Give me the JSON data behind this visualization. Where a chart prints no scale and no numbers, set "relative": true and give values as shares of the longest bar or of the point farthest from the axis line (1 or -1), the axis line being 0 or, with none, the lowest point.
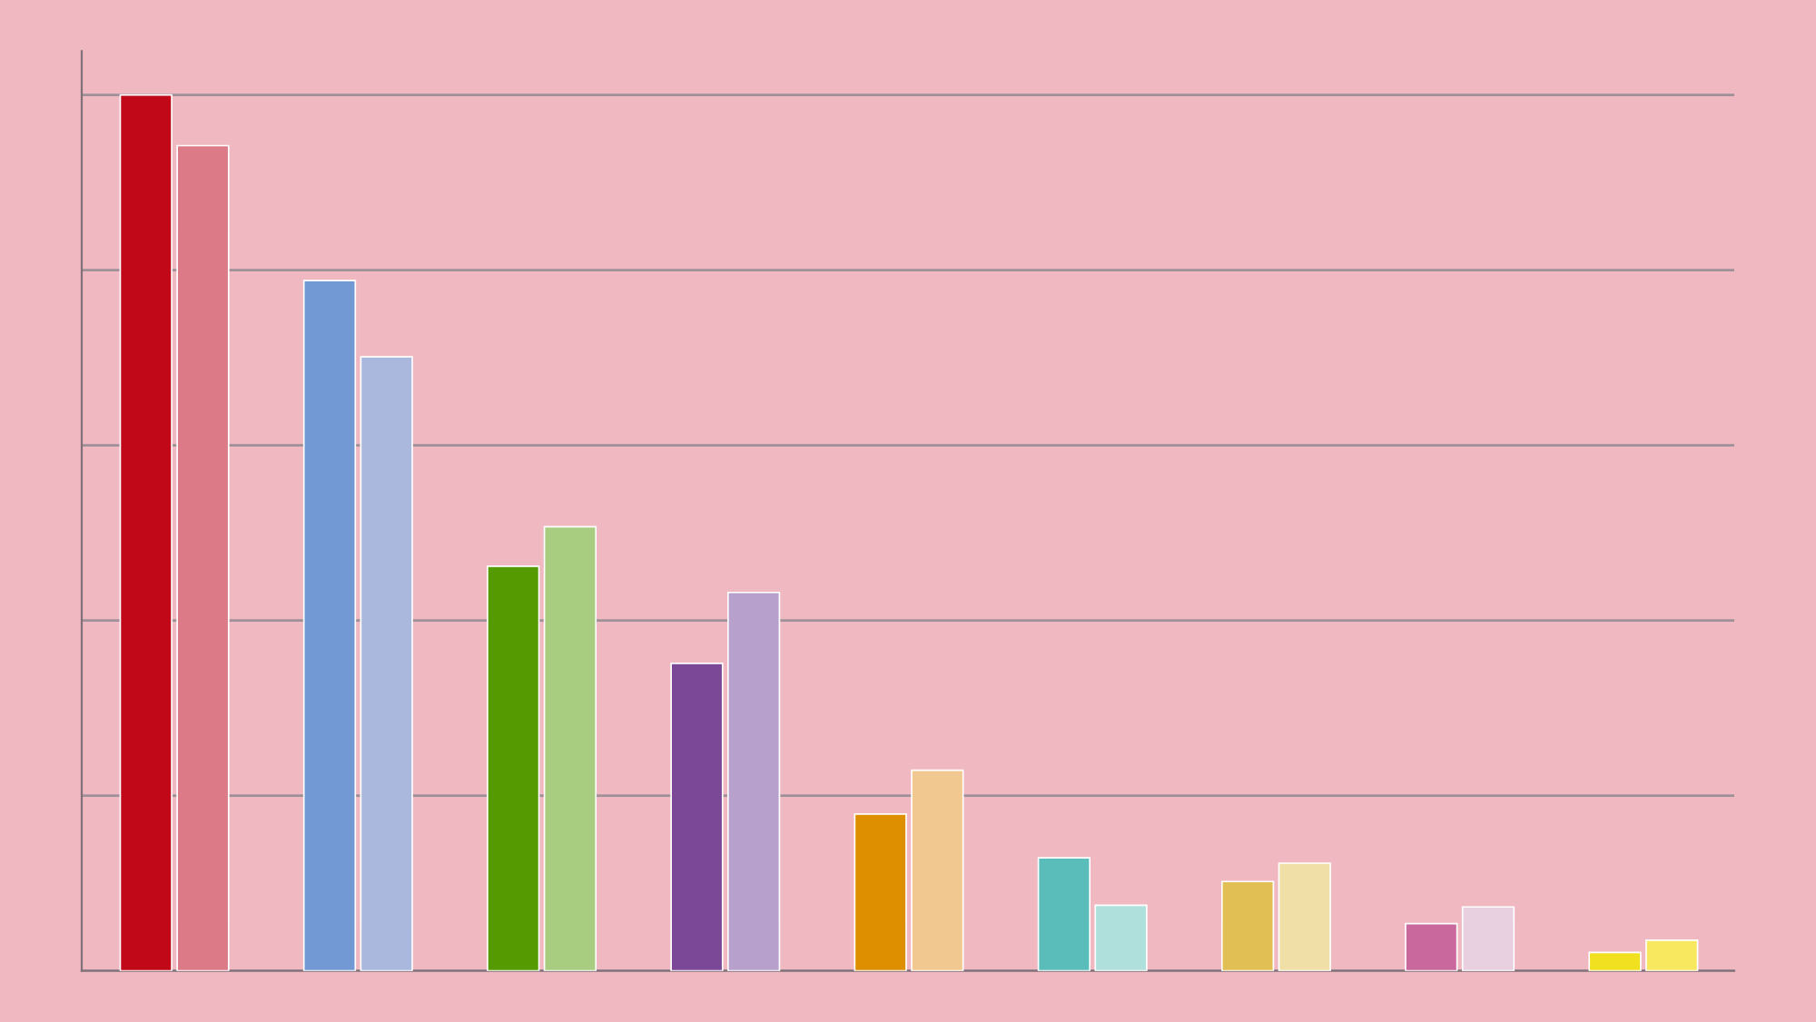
{
  "chart_data": {
    "type": "bar",
    "relative": true,
    "grid": "y",
    "categories": [
      null,
      null,
      null,
      null,
      null,
      null,
      null,
      null,
      null
    ],
    "series": [
      {
        "colors": [
          "#c00818",
          "#7399d4",
          "#559a00",
          "#7a4896",
          "#de8f00",
          "#5bbdb9",
          "#e1bf55",
          "#c8689c",
          "#f0e020"
        ],
        "values": [
          1.0,
          0.788,
          0.462,
          0.351,
          0.179,
          0.129,
          0.102,
          0.054,
          0.021
        ]
      },
      {
        "colors": [
          "#dd7a88",
          "#a9b8dc",
          "#a8cc80",
          "#b8a0cc",
          "#f0c890",
          "#b0e0dc",
          "#f0e0a8",
          "#e8d0e0",
          "#f8e860"
        ],
        "values": [
          0.942,
          0.701,
          0.507,
          0.432,
          0.229,
          0.075,
          0.123,
          0.073,
          0.035
        ]
      }
    ]
  }
}
